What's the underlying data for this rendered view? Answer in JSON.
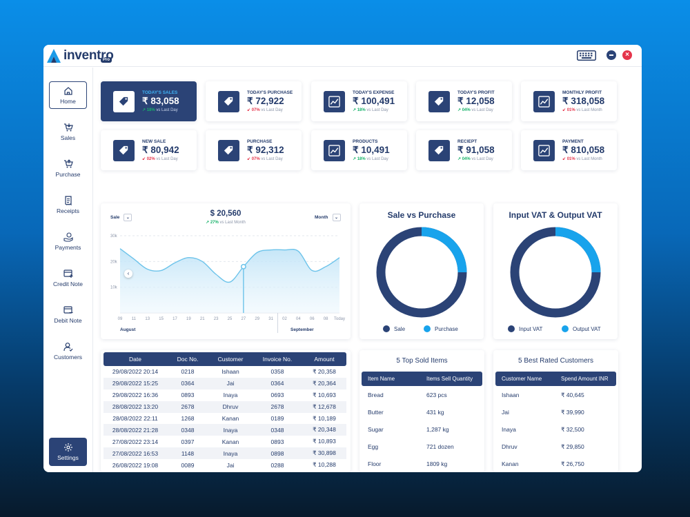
{
  "app": {
    "name": "inventro",
    "badge": "Pro"
  },
  "window_controls": {
    "keyboard_icon": "keyboard-icon",
    "minimize_icon": "minus-icon",
    "close_icon": "close-icon",
    "close_glyph": "×"
  },
  "sidebar": {
    "items": [
      {
        "label": "Home",
        "icon": "home-icon"
      },
      {
        "label": "Sales",
        "icon": "cart-icon"
      },
      {
        "label": "Purchase",
        "icon": "cart-icon"
      },
      {
        "label": "Receipts",
        "icon": "receipt-icon"
      },
      {
        "label": "Payments",
        "icon": "payment-hand-icon"
      },
      {
        "label": "Credit Note",
        "icon": "credit-note-icon"
      },
      {
        "label": "Debit Note",
        "icon": "debit-note-icon"
      },
      {
        "label": "Customers",
        "icon": "customers-icon"
      }
    ],
    "settings": {
      "label": "Settings",
      "icon": "gear-icon"
    }
  },
  "stats": [
    {
      "label": "TODAY'S SALES",
      "value": "₹ 83,058",
      "change": "18%",
      "direction": "up",
      "suffix": "vs Last Day",
      "icon": "tag-icon"
    },
    {
      "label": "TODAY'S PURCHASE",
      "value": "₹ 72,922",
      "change": "07%",
      "direction": "down",
      "suffix": "vs Last Day",
      "icon": "tag-icon"
    },
    {
      "label": "TODAY'S EXPENSE",
      "value": "₹ 100,491",
      "change": "18%",
      "direction": "up",
      "suffix": "vs Last Day",
      "icon": "trend-chart-icon"
    },
    {
      "label": "TODAY'S PROFIT",
      "value": "₹ 12,058",
      "change": "04%",
      "direction": "up",
      "suffix": "vs Last Day",
      "icon": "tag-icon"
    },
    {
      "label": "MONTHLY PROFIT",
      "value": "₹ 318,058",
      "change": "01%",
      "direction": "down",
      "suffix": "vs Last Month",
      "icon": "trend-chart-icon"
    },
    {
      "label": "NEW SALE",
      "value": "₹ 80,942",
      "change": "02%",
      "direction": "down",
      "suffix": "vs Last Day",
      "icon": "tag-icon"
    },
    {
      "label": "PURCHASE",
      "value": "₹ 92,312",
      "change": "07%",
      "direction": "down",
      "suffix": "vs Last Day",
      "icon": "tag-icon"
    },
    {
      "label": "PRODUCTS",
      "value": "₹ 10,491",
      "change": "18%",
      "direction": "up",
      "suffix": "vs Last Day",
      "icon": "trend-chart-icon"
    },
    {
      "label": "RECIEPT",
      "value": "₹ 91,058",
      "change": "04%",
      "direction": "up",
      "suffix": "vs Last Day",
      "icon": "tag-icon"
    },
    {
      "label": "PAYMENT",
      "value": "₹ 810,058",
      "change": "01%",
      "direction": "down",
      "suffix": "vs Last Month",
      "icon": "trend-chart-icon"
    }
  ],
  "sales_chart": {
    "type_select": "Sale",
    "period_select": "Month",
    "total": "$ 20,560",
    "change": "27%",
    "change_suffix": "vs Last Month",
    "month_left": "August",
    "month_right": "September"
  },
  "chart_data": {
    "type": "area",
    "x": [
      "09",
      "11",
      "13",
      "15",
      "17",
      "19",
      "21",
      "23",
      "25",
      "27",
      "29",
      "31",
      "02",
      "04",
      "06",
      "08",
      "Today"
    ],
    "y_ticks": [
      "30k",
      "20k",
      "10k"
    ],
    "ylim": [
      0,
      30000
    ],
    "values": [
      25000,
      21000,
      17000,
      16500,
      19500,
      21500,
      20000,
      15000,
      12000,
      18000,
      23500,
      24500,
      24500,
      24000,
      16500,
      18000,
      21500
    ],
    "highlight_index": 9,
    "grid": true
  },
  "donuts": [
    {
      "title": "Sale vs Purchase",
      "legend": [
        "Sale",
        "Purchase"
      ],
      "colors": [
        "#2b4376",
        "#18a3ec"
      ],
      "share_second": 0.25
    },
    {
      "title": "Input VAT & Output VAT",
      "legend": [
        "Input VAT",
        "Output VAT"
      ],
      "colors": [
        "#2b4376",
        "#18a3ec"
      ],
      "share_second": 0.25
    }
  ],
  "transactions": {
    "headers": [
      "Date",
      "Doc No.",
      "Customer",
      "Invoice No.",
      "Amount"
    ],
    "rows": [
      [
        "29/08/2022 20:14",
        "0218",
        "Ishaan",
        "0358",
        "₹ 20,358"
      ],
      [
        "29/08/2022 15:25",
        "0364",
        "Jai",
        "0364",
        "₹ 20,364"
      ],
      [
        "29/08/2022 16:36",
        "0893",
        "Inaya",
        "0693",
        "₹ 10,693"
      ],
      [
        "28/08/2022 13:20",
        "2678",
        "Dhruv",
        "2678",
        "₹ 12,678"
      ],
      [
        "28/08/2022 22:11",
        "1268",
        "Kanan",
        "0189",
        "₹ 10,189"
      ],
      [
        "28/08/2022 21:28",
        "0348",
        "Inaya",
        "0348",
        "₹ 20,348"
      ],
      [
        "27/08/2022 23:14",
        "0397",
        "Kanan",
        "0893",
        "₹ 10,893"
      ],
      [
        "27/08/2022 16:53",
        "1148",
        "Inaya",
        "0898",
        "₹ 30,898"
      ],
      [
        "26/08/2022 19:08",
        "0089",
        "Jai",
        "0288",
        "₹ 10,288"
      ]
    ]
  },
  "top_items": {
    "title": "5 Top Sold Items",
    "headers": [
      "Item Name",
      "Items Sell Quantity"
    ],
    "rows": [
      [
        "Bread",
        "623 pcs"
      ],
      [
        "Butter",
        "431 kg"
      ],
      [
        "Sugar",
        "1,287 kg"
      ],
      [
        "Egg",
        "721 dozen"
      ],
      [
        "Floor",
        "1809 kg"
      ]
    ]
  },
  "top_customers": {
    "title": "5 Best Rated Customers",
    "headers": [
      "Customer Name",
      "Spend Amount INR"
    ],
    "rows": [
      [
        "Ishaan",
        "₹ 40,645"
      ],
      [
        "Jai",
        "₹ 39,990"
      ],
      [
        "Inaya",
        "₹ 32,500"
      ],
      [
        "Dhruv",
        "₹ 29,850"
      ],
      [
        "Kanan",
        "₹ 26,750"
      ]
    ]
  }
}
